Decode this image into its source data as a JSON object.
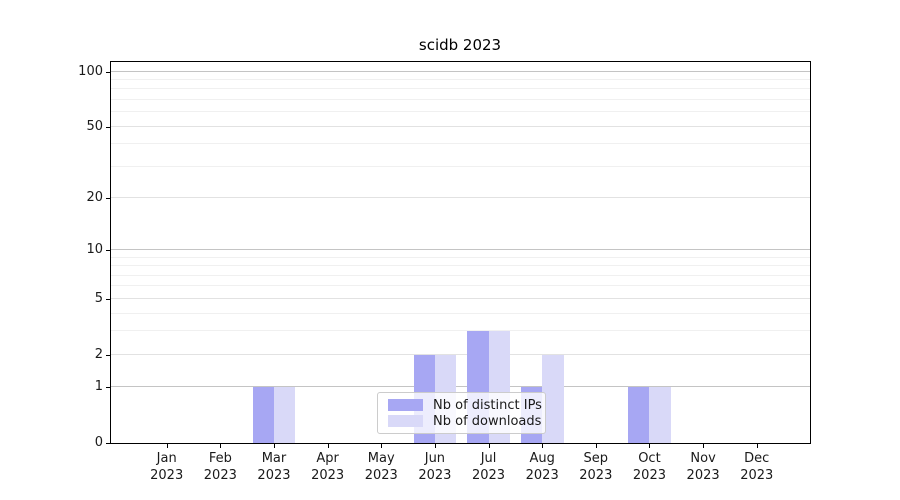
{
  "chart_data": {
    "type": "bar",
    "title": "scidb 2023",
    "categories": [
      "Jan 2023",
      "Feb 2023",
      "Mar 2023",
      "Apr 2023",
      "May 2023",
      "Jun 2023",
      "Jul 2023",
      "Aug 2023",
      "Sep 2023",
      "Oct 2023",
      "Nov 2023",
      "Dec 2023"
    ],
    "series": [
      {
        "name": "Nb of distinct IPs",
        "color": "#a7a7f3",
        "values": [
          0,
          0,
          1,
          0,
          0,
          2,
          3,
          1,
          0,
          1,
          0,
          0
        ]
      },
      {
        "name": "Nb of downloads",
        "color": "#d9d9f8",
        "values": [
          0,
          0,
          1,
          0,
          0,
          2,
          3,
          2,
          0,
          1,
          0,
          0
        ]
      }
    ],
    "xlabel": "",
    "ylabel": "",
    "yscale": "log1p",
    "ylim": [
      0,
      114
    ],
    "yticks": [
      0,
      1,
      2,
      5,
      10,
      20,
      50,
      100
    ],
    "minor_yticks": [
      3,
      4,
      6,
      7,
      8,
      9,
      30,
      40,
      60,
      70,
      80,
      90
    ],
    "grid": true,
    "legend_position": "lower center"
  },
  "colors": {
    "grid_decade": "#c4c4c4",
    "grid_major": "#e2e2e2",
    "grid_minor": "#f0f0f0",
    "axis": "#000000",
    "legend_border": "#cccccc",
    "text": "#1a1a1a"
  }
}
